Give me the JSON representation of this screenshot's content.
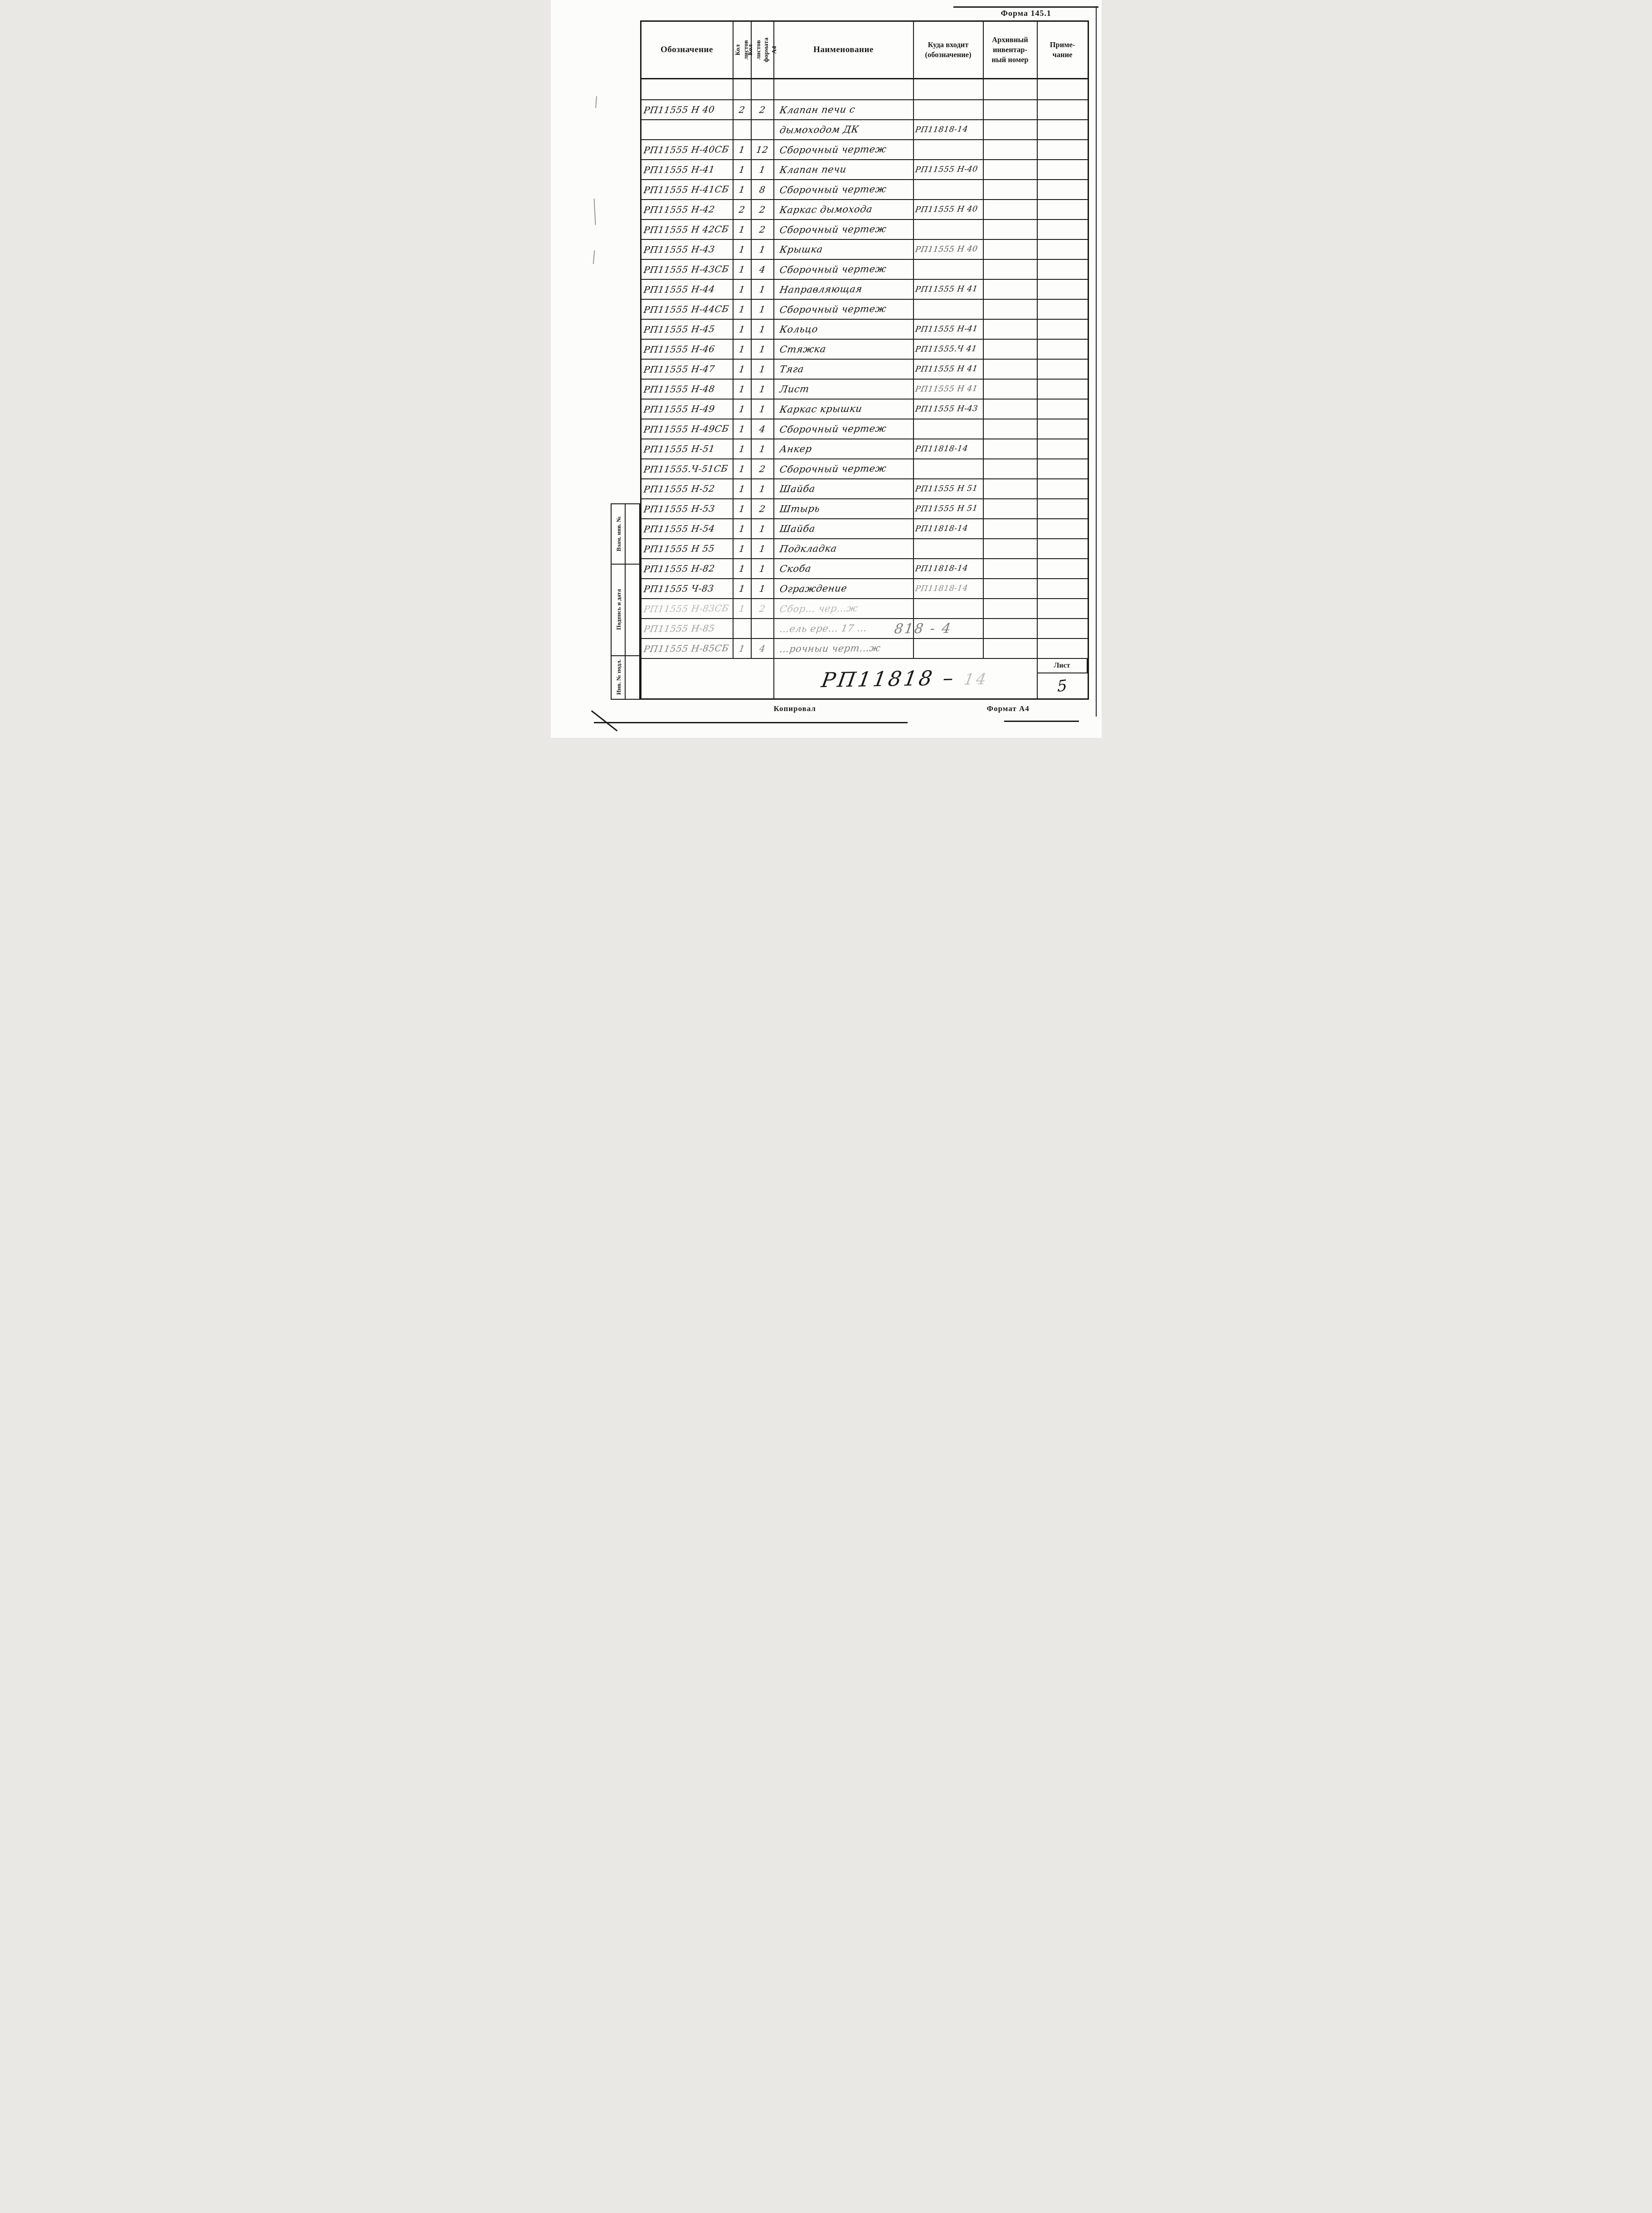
{
  "form_label": "Форма 145.1",
  "table": {
    "headers": {
      "designation": "Обозначение",
      "sheets": "Кол листов",
      "sheets_a4": "Кол листов\nформата А4",
      "name": "Наименование",
      "parent": "Куда входит\n(обозначение)",
      "archive": "Архивный\nинвентар-\nный номер",
      "note": "Приме-\nчание"
    },
    "rows": [
      {
        "designation": "РП11555 Н 40",
        "sheets": "2",
        "sheets_a4": "2",
        "name": "Клапан печи с",
        "parent": "",
        "archive": "",
        "note": ""
      },
      {
        "designation": "",
        "sheets": "",
        "sheets_a4": "",
        "name": "дымоходом ДК",
        "parent": "РП11818-14",
        "archive": "",
        "note": ""
      },
      {
        "designation": "РП11555 Н-40СБ",
        "sheets": "1",
        "sheets_a4": "12",
        "name": "Сборочный чертеж",
        "parent": "",
        "archive": "",
        "note": ""
      },
      {
        "designation": "РП11555 Н-41",
        "sheets": "1",
        "sheets_a4": "1",
        "name": "Клапан печи",
        "parent": "РП11555 Н-40",
        "archive": "",
        "note": ""
      },
      {
        "designation": "РП11555 Н-41СБ",
        "sheets": "1",
        "sheets_a4": "8",
        "name": "Сборочный чертеж",
        "parent": "",
        "archive": "",
        "note": ""
      },
      {
        "designation": "РП11555 Н-42",
        "sheets": "2",
        "sheets_a4": "2",
        "name": "Каркас дымохода",
        "parent": "РП11555 Н 40",
        "archive": "",
        "note": ""
      },
      {
        "designation": "РП11555 Н 42СБ",
        "sheets": "1",
        "sheets_a4": "2",
        "name": "Сборочный чертеж",
        "parent": "",
        "archive": "",
        "note": ""
      },
      {
        "designation": "РП11555 Н-43",
        "sheets": "1",
        "sheets_a4": "1",
        "name": "Крышка",
        "parent": "РП11555 Н 40",
        "archive": "",
        "note": "",
        "parent_fade": 0.7
      },
      {
        "designation": "РП11555 Н-43СБ",
        "sheets": "1",
        "sheets_a4": "4",
        "name": "Сборочный чертеж",
        "parent": "",
        "archive": "",
        "note": ""
      },
      {
        "designation": "РП11555 Н-44",
        "sheets": "1",
        "sheets_a4": "1",
        "name": "Направляющая",
        "parent": "РП11555 Н 41",
        "archive": "",
        "note": ""
      },
      {
        "designation": "РП11555 Н-44СБ",
        "sheets": "1",
        "sheets_a4": "1",
        "name": "Сборочный чертеж",
        "parent": "",
        "archive": "",
        "note": ""
      },
      {
        "designation": "РП11555 Н-45",
        "sheets": "1",
        "sheets_a4": "1",
        "name": "Кольцо",
        "parent": "РП11555 Н-41",
        "archive": "",
        "note": ""
      },
      {
        "designation": "РП11555 Н-46",
        "sheets": "1",
        "sheets_a4": "1",
        "name": "Стяжка",
        "parent": "РП11555.Ч 41",
        "archive": "",
        "note": ""
      },
      {
        "designation": "РП11555 Н-47",
        "sheets": "1",
        "sheets_a4": "1",
        "name": "Тяга",
        "parent": "РП11555 Н 41",
        "archive": "",
        "note": ""
      },
      {
        "designation": "РП11555 Н-48",
        "sheets": "1",
        "sheets_a4": "1",
        "name": "Лист",
        "parent": "РП11555 Н 41",
        "archive": "",
        "note": "",
        "parent_fade": 0.65
      },
      {
        "designation": "РП11555 Н-49",
        "sheets": "1",
        "sheets_a4": "1",
        "name": "Каркас крышки",
        "parent": "РП11555 Н-43",
        "archive": "",
        "note": ""
      },
      {
        "designation": "РП11555 Н-49СБ",
        "sheets": "1",
        "sheets_a4": "4",
        "name": "Сборочный чертеж",
        "parent": "",
        "archive": "",
        "note": ""
      },
      {
        "designation": "РП11555 Н-51",
        "sheets": "1",
        "sheets_a4": "1",
        "name": "Анкер",
        "parent": "РП11818-14",
        "archive": "",
        "note": ""
      },
      {
        "designation": "РП11555.Ч-51СБ",
        "sheets": "1",
        "sheets_a4": "2",
        "name": "Сборочный чертеж",
        "parent": "",
        "archive": "",
        "note": ""
      },
      {
        "designation": "РП11555 Н-52",
        "sheets": "1",
        "sheets_a4": "1",
        "name": "Шайба",
        "parent": "РП11555 Н 51",
        "archive": "",
        "note": ""
      },
      {
        "designation": "РП11555 Н-53",
        "sheets": "1",
        "sheets_a4": "2",
        "name": "Штырь",
        "parent": "РП11555 Н 51",
        "archive": "",
        "note": ""
      },
      {
        "designation": "РП11555 Н-54",
        "sheets": "1",
        "sheets_a4": "1",
        "name": "Шайба",
        "parent": "РП11818-14",
        "archive": "",
        "note": ""
      },
      {
        "designation": "РП11555 Н 55",
        "sheets": "1",
        "sheets_a4": "1",
        "name": "Подкладка",
        "parent": "",
        "archive": "",
        "note": ""
      },
      {
        "designation": "РП11555 Н-82",
        "sheets": "1",
        "sheets_a4": "1",
        "name": "Скоба",
        "parent": "РП11818-14",
        "archive": "",
        "note": ""
      },
      {
        "designation": "РП11555 Ч-83",
        "sheets": "1",
        "sheets_a4": "1",
        "name": "Ограждение",
        "parent": "РП11818-14",
        "archive": "",
        "note": "",
        "parent_fade": 0.5
      },
      {
        "designation": "РП11555 Н-83СБ",
        "sheets": "1",
        "sheets_a4": "2",
        "name": "Сбор… чер…ж",
        "parent": "",
        "archive": "",
        "note": "",
        "fade": 0.3
      },
      {
        "designation": "РП11555 Н-85",
        "sheets": "",
        "sheets_a4": "",
        "name": "…ель ере… 17 …",
        "parent": "818 - 4",
        "archive": "",
        "note": "",
        "fade": 0.4,
        "parent_fade": 0.55,
        "parent_large": true
      },
      {
        "designation": "РП11555 Н-85СБ",
        "sheets": "1",
        "sheets_a4": "4",
        "name": "…рочныи черт…ж",
        "parent": "",
        "archive": "",
        "note": "",
        "fade": 0.55
      }
    ]
  },
  "footer": {
    "doc_number": "РП11818 –",
    "doc_number_faint": "14",
    "sheet_label": "Лист",
    "sheet_number": "5"
  },
  "stamp_column": {
    "labels": [
      "Взам. инв. №",
      "Подпись и дата",
      "Инв. № подл."
    ]
  },
  "bottom": {
    "copied_label": "Копировал",
    "format_label": "Формат А4"
  }
}
